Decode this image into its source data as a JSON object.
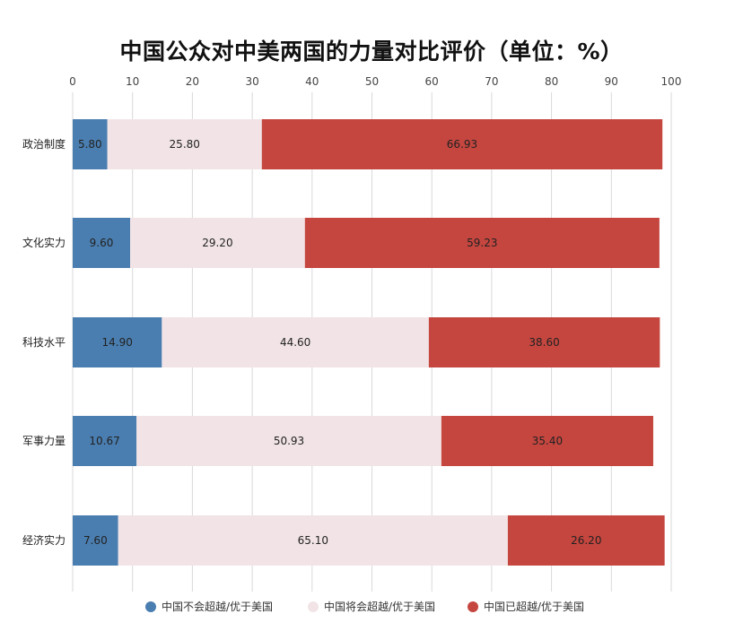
{
  "chart_data": {
    "type": "bar",
    "orientation": "horizontal",
    "stacked": true,
    "title": "中国公众对中美两国的力量对比评价（单位：%）",
    "categories": [
      "政治制度",
      "文化实力",
      "科技水平",
      "军事力量",
      "经济实力"
    ],
    "series": [
      {
        "name": "中国不会超越/优于美国",
        "color": "#4a7eb0",
        "values": [
          5.8,
          9.6,
          14.9,
          10.67,
          7.6
        ]
      },
      {
        "name": "中国将会超越/优于美国",
        "color": "#f2e4e6",
        "values": [
          25.8,
          29.2,
          44.6,
          50.93,
          65.1
        ]
      },
      {
        "name": "中国已超越/优于美国",
        "color": "#c5463f",
        "values": [
          66.93,
          59.23,
          38.6,
          35.4,
          26.2
        ]
      }
    ],
    "value_labels": [
      [
        "5.80",
        "25.80",
        "66.93"
      ],
      [
        "9.60",
        "29.20",
        "59.23"
      ],
      [
        "14.90",
        "44.60",
        "38.60"
      ],
      [
        "10.67",
        "50.93",
        "35.40"
      ],
      [
        "7.60",
        "65.10",
        "26.20"
      ]
    ],
    "xlim": [
      0,
      100
    ],
    "xticks": [
      0,
      10,
      20,
      30,
      40,
      50,
      60,
      70,
      80,
      90,
      100
    ],
    "x_axis_position": "top",
    "grid": true,
    "legend_position": "bottom"
  }
}
